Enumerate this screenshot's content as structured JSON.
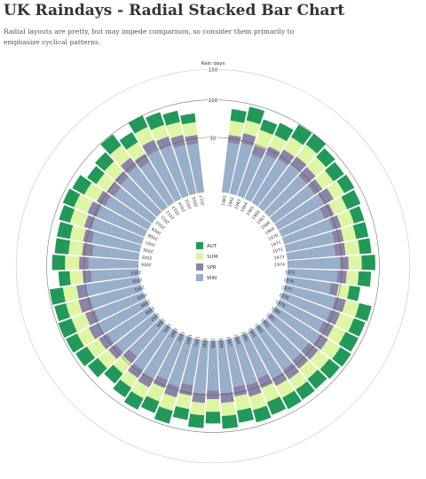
{
  "title": "UK Raindays - Radial Stacked Bar Chart",
  "subtitle": "Radial layouts are pretty, but may impede comparison, so consider them primarily to emphasize cyclical patterns.",
  "colors": {
    "WIN": "#98aec9",
    "SPR": "#8a84a6",
    "SUM": "#dff5a6",
    "AUT": "#23985a"
  },
  "chart_data": {
    "type": "bar",
    "layout": "radial-stacked",
    "ylabel": "Rain days",
    "yticks": [
      50,
      100,
      150
    ],
    "ylim": [
      0,
      160
    ],
    "legend": [
      "AUT",
      "SUM",
      "SPR",
      "WIN"
    ],
    "categories": [
      "1961",
      "1962",
      "1963",
      "1964",
      "1965",
      "1966",
      "1967",
      "1968",
      "1969",
      "1970",
      "1971",
      "1972",
      "1973",
      "1974",
      "1975",
      "1976",
      "1977",
      "1978",
      "1979",
      "1980",
      "1981",
      "1982",
      "1983",
      "1984",
      "1985",
      "1986",
      "1987",
      "1988",
      "1989",
      "1990",
      "1991",
      "1992",
      "1993",
      "1994",
      "1995",
      "1996",
      "1997",
      "1998",
      "1999",
      "2000",
      "2001",
      "2002",
      "2003",
      "2004",
      "2005",
      "2006",
      "2007",
      "2008",
      "2009",
      "2010",
      "2011",
      "2012",
      "2013",
      "2014",
      "2015",
      "2016",
      "2017"
    ],
    "series": [
      {
        "name": "WIN",
        "values": [
          45,
          47,
          38,
          44,
          46,
          49,
          45,
          45,
          48,
          41,
          46,
          44,
          43,
          48,
          45,
          39,
          47,
          46,
          44,
          48,
          43,
          44,
          46,
          48,
          41,
          44,
          43,
          48,
          45,
          49,
          41,
          46,
          43,
          48,
          46,
          38,
          45,
          46,
          49,
          47,
          48,
          50,
          42,
          45,
          41,
          44,
          48,
          47,
          44,
          41,
          43,
          46,
          42,
          51,
          49,
          45,
          44
        ]
      },
      {
        "name": "SPR",
        "values": [
          9,
          12,
          11,
          10,
          13,
          12,
          14,
          11,
          13,
          12,
          10,
          11,
          12,
          10,
          11,
          9,
          13,
          12,
          13,
          11,
          14,
          12,
          13,
          10,
          12,
          14,
          11,
          12,
          10,
          11,
          12,
          13,
          10,
          12,
          11,
          10,
          11,
          12,
          13,
          12,
          14,
          11,
          10,
          11,
          12,
          10,
          9,
          12,
          11,
          10,
          9,
          13,
          11,
          12,
          11,
          12,
          10
        ]
      },
      {
        "name": "SUM",
        "values": [
          18,
          17,
          20,
          16,
          19,
          20,
          18,
          17,
          16,
          18,
          17,
          16,
          18,
          17,
          15,
          13,
          18,
          19,
          17,
          19,
          18,
          17,
          16,
          17,
          19,
          18,
          18,
          17,
          16,
          16,
          17,
          18,
          18,
          16,
          15,
          16,
          17,
          18,
          17,
          19,
          17,
          18,
          16,
          18,
          17,
          17,
          19,
          19,
          18,
          16,
          17,
          20,
          17,
          19,
          16,
          17,
          16
        ]
      },
      {
        "name": "AUT",
        "values": [
          16,
          20,
          15,
          18,
          21,
          19,
          17,
          18,
          16,
          20,
          15,
          17,
          16,
          19,
          17,
          14,
          18,
          17,
          20,
          18,
          19,
          18,
          17,
          18,
          19,
          18,
          17,
          18,
          16,
          18,
          15,
          19,
          17,
          18,
          16,
          17,
          18,
          19,
          18,
          20,
          17,
          19,
          15,
          18,
          19,
          18,
          16,
          17,
          19,
          15,
          17,
          20,
          16,
          18,
          19,
          16,
          12
        ]
      }
    ]
  }
}
